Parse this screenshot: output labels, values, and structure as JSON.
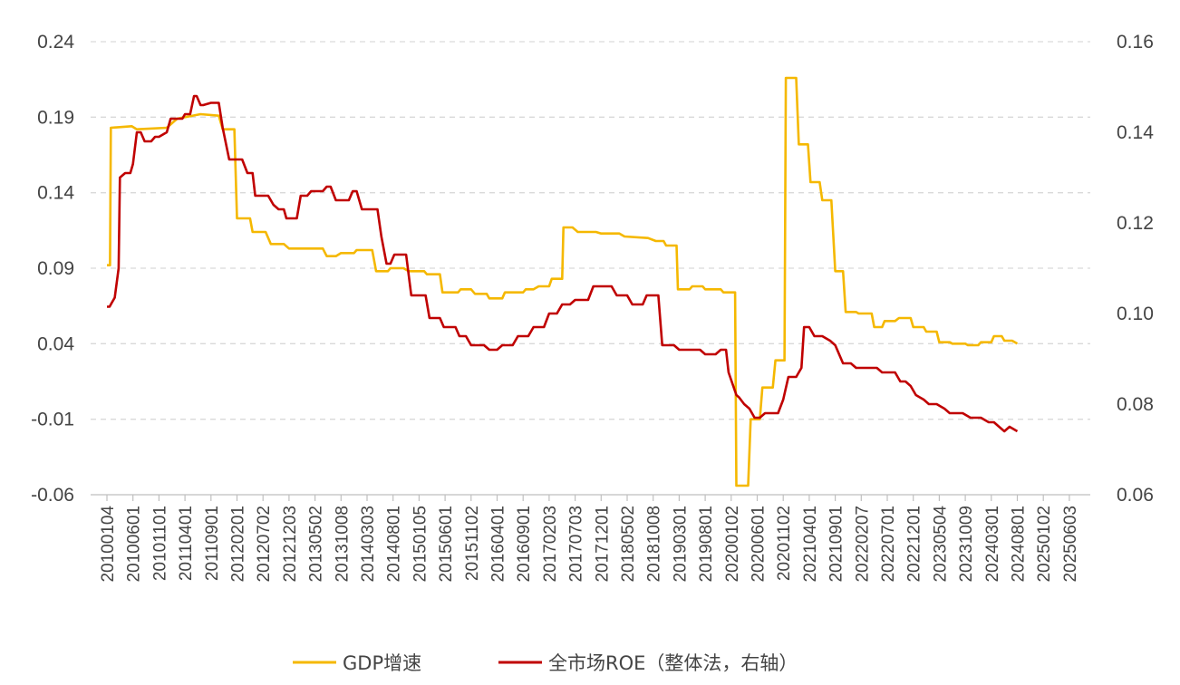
{
  "chart_data": {
    "type": "line",
    "grid": true,
    "legend_position": "bottom-center",
    "y_left": {
      "ticks": [
        "0.24",
        "0.19",
        "0.14",
        "0.09",
        "0.04",
        "-0.01",
        "-0.06"
      ],
      "range": [
        -0.06,
        0.24
      ]
    },
    "y_right": {
      "ticks": [
        "0.16",
        "0.14",
        "0.12",
        "0.10",
        "0.08",
        "0.06"
      ],
      "range": [
        0.06,
        0.16
      ]
    },
    "x_ticks": [
      "20100104",
      "20100601",
      "20101101",
      "20110401",
      "20110901",
      "20120201",
      "20120702",
      "20121203",
      "20130502",
      "20131008",
      "20140303",
      "20140801",
      "20150105",
      "20150601",
      "20151102",
      "20160401",
      "20160901",
      "20170203",
      "20170703",
      "20171201",
      "20180502",
      "20181008",
      "20190301",
      "20190801",
      "20200102",
      "20200601",
      "20201102",
      "20210401",
      "20210901",
      "20220207",
      "20220701",
      "20221201",
      "20230504",
      "20231009",
      "20240301",
      "20240801",
      "20250102",
      "20250603"
    ],
    "series": [
      {
        "name": "GDP增速",
        "axis": "left",
        "color": "#F5B800",
        "points": [
          [
            0,
            0.092
          ],
          [
            0.12,
            0.092
          ],
          [
            0.15,
            0.183
          ],
          [
            0.95,
            0.184
          ],
          [
            1.15,
            0.182
          ],
          [
            2.3,
            0.183
          ],
          [
            2.7,
            0.189
          ],
          [
            3.6,
            0.192
          ],
          [
            4.3,
            0.191
          ],
          [
            4.45,
            0.182
          ],
          [
            4.9,
            0.182
          ],
          [
            5.0,
            0.123
          ],
          [
            5.5,
            0.123
          ],
          [
            5.6,
            0.114
          ],
          [
            6.1,
            0.114
          ],
          [
            6.3,
            0.106
          ],
          [
            6.8,
            0.106
          ],
          [
            7.0,
            0.103
          ],
          [
            8.3,
            0.103
          ],
          [
            8.45,
            0.098
          ],
          [
            8.8,
            0.098
          ],
          [
            9.0,
            0.1
          ],
          [
            9.5,
            0.1
          ],
          [
            9.6,
            0.102
          ],
          [
            10.2,
            0.102
          ],
          [
            10.35,
            0.088
          ],
          [
            10.8,
            0.088
          ],
          [
            10.9,
            0.09
          ],
          [
            11.4,
            0.09
          ],
          [
            11.6,
            0.088
          ],
          [
            12.2,
            0.088
          ],
          [
            12.3,
            0.086
          ],
          [
            12.8,
            0.086
          ],
          [
            12.9,
            0.074
          ],
          [
            13.5,
            0.074
          ],
          [
            13.6,
            0.076
          ],
          [
            14.0,
            0.076
          ],
          [
            14.15,
            0.073
          ],
          [
            14.6,
            0.073
          ],
          [
            14.7,
            0.07
          ],
          [
            15.2,
            0.07
          ],
          [
            15.3,
            0.074
          ],
          [
            16.0,
            0.074
          ],
          [
            16.1,
            0.076
          ],
          [
            16.4,
            0.076
          ],
          [
            16.6,
            0.078
          ],
          [
            17.0,
            0.078
          ],
          [
            17.1,
            0.083
          ],
          [
            17.5,
            0.083
          ],
          [
            17.55,
            0.117
          ],
          [
            17.9,
            0.117
          ],
          [
            18.1,
            0.114
          ],
          [
            18.8,
            0.114
          ],
          [
            19.0,
            0.113
          ],
          [
            19.7,
            0.113
          ],
          [
            19.9,
            0.111
          ],
          [
            20.8,
            0.11
          ],
          [
            21.1,
            0.108
          ],
          [
            21.4,
            0.108
          ],
          [
            21.5,
            0.105
          ],
          [
            21.9,
            0.105
          ],
          [
            21.95,
            0.076
          ],
          [
            22.4,
            0.076
          ],
          [
            22.5,
            0.078
          ],
          [
            22.9,
            0.078
          ],
          [
            23.0,
            0.076
          ],
          [
            23.6,
            0.076
          ],
          [
            23.7,
            0.074
          ],
          [
            24.15,
            0.074
          ],
          [
            24.2,
            -0.054
          ],
          [
            24.65,
            -0.054
          ],
          [
            24.75,
            -0.01
          ],
          [
            25.1,
            -0.01
          ],
          [
            25.2,
            0.011
          ],
          [
            25.6,
            0.011
          ],
          [
            25.7,
            0.029
          ],
          [
            26.05,
            0.029
          ],
          [
            26.1,
            0.216
          ],
          [
            26.5,
            0.216
          ],
          [
            26.6,
            0.172
          ],
          [
            26.95,
            0.172
          ],
          [
            27.05,
            0.147
          ],
          [
            27.4,
            0.147
          ],
          [
            27.5,
            0.135
          ],
          [
            27.85,
            0.135
          ],
          [
            28.0,
            0.088
          ],
          [
            28.3,
            0.088
          ],
          [
            28.4,
            0.061
          ],
          [
            28.8,
            0.061
          ],
          [
            28.9,
            0.06
          ],
          [
            29.4,
            0.06
          ],
          [
            29.5,
            0.051
          ],
          [
            29.8,
            0.051
          ],
          [
            29.9,
            0.055
          ],
          [
            30.3,
            0.055
          ],
          [
            30.45,
            0.057
          ],
          [
            30.9,
            0.057
          ],
          [
            31.0,
            0.051
          ],
          [
            31.4,
            0.051
          ],
          [
            31.5,
            0.048
          ],
          [
            31.9,
            0.048
          ],
          [
            32.0,
            0.041
          ],
          [
            32.4,
            0.041
          ],
          [
            32.5,
            0.04
          ],
          [
            33.0,
            0.04
          ],
          [
            33.1,
            0.039
          ],
          [
            33.5,
            0.039
          ],
          [
            33.6,
            0.041
          ],
          [
            34.0,
            0.041
          ],
          [
            34.1,
            0.045
          ],
          [
            34.4,
            0.045
          ],
          [
            34.5,
            0.042
          ],
          [
            34.8,
            0.042
          ],
          [
            35.0,
            0.04
          ]
        ]
      },
      {
        "name": "全市场ROE（整体法，右轴）",
        "axis": "right",
        "color": "#C00000",
        "points": [
          [
            0,
            0.1015
          ],
          [
            0.1,
            0.1015
          ],
          [
            0.2,
            0.1025
          ],
          [
            0.3,
            0.1035
          ],
          [
            0.45,
            0.11
          ],
          [
            0.5,
            0.13
          ],
          [
            0.7,
            0.131
          ],
          [
            0.9,
            0.131
          ],
          [
            1.0,
            0.133
          ],
          [
            1.15,
            0.14
          ],
          [
            1.3,
            0.14
          ],
          [
            1.45,
            0.138
          ],
          [
            1.7,
            0.138
          ],
          [
            1.85,
            0.139
          ],
          [
            2.0,
            0.139
          ],
          [
            2.3,
            0.14
          ],
          [
            2.45,
            0.143
          ],
          [
            2.6,
            0.143
          ],
          [
            2.9,
            0.143
          ],
          [
            3.0,
            0.144
          ],
          [
            3.2,
            0.144
          ],
          [
            3.35,
            0.148
          ],
          [
            3.45,
            0.148
          ],
          [
            3.6,
            0.146
          ],
          [
            3.7,
            0.146
          ],
          [
            4.0,
            0.1465
          ],
          [
            4.3,
            0.1465
          ],
          [
            4.45,
            0.141
          ],
          [
            4.7,
            0.134
          ],
          [
            5.2,
            0.134
          ],
          [
            5.4,
            0.131
          ],
          [
            5.6,
            0.131
          ],
          [
            5.7,
            0.126
          ],
          [
            6.2,
            0.126
          ],
          [
            6.4,
            0.124
          ],
          [
            6.6,
            0.123
          ],
          [
            6.8,
            0.123
          ],
          [
            6.9,
            0.121
          ],
          [
            7.2,
            0.121
          ],
          [
            7.3,
            0.121
          ],
          [
            7.45,
            0.126
          ],
          [
            7.7,
            0.126
          ],
          [
            7.85,
            0.127
          ],
          [
            8.3,
            0.127
          ],
          [
            8.45,
            0.128
          ],
          [
            8.6,
            0.128
          ],
          [
            8.8,
            0.125
          ],
          [
            9.1,
            0.125
          ],
          [
            9.3,
            0.125
          ],
          [
            9.45,
            0.127
          ],
          [
            9.6,
            0.127
          ],
          [
            9.8,
            0.123
          ],
          [
            10.4,
            0.123
          ],
          [
            10.55,
            0.117
          ],
          [
            10.75,
            0.111
          ],
          [
            10.9,
            0.111
          ],
          [
            11.05,
            0.113
          ],
          [
            11.5,
            0.113
          ],
          [
            11.7,
            0.104
          ],
          [
            12.1,
            0.104
          ],
          [
            12.25,
            0.104
          ],
          [
            12.4,
            0.099
          ],
          [
            12.8,
            0.099
          ],
          [
            12.95,
            0.097
          ],
          [
            13.4,
            0.097
          ],
          [
            13.55,
            0.095
          ],
          [
            13.8,
            0.095
          ],
          [
            14.0,
            0.093
          ],
          [
            14.5,
            0.093
          ],
          [
            14.7,
            0.092
          ],
          [
            15.0,
            0.092
          ],
          [
            15.2,
            0.093
          ],
          [
            15.6,
            0.093
          ],
          [
            15.8,
            0.095
          ],
          [
            16.2,
            0.095
          ],
          [
            16.4,
            0.097
          ],
          [
            16.8,
            0.097
          ],
          [
            17.0,
            0.1
          ],
          [
            17.3,
            0.1
          ],
          [
            17.5,
            0.102
          ],
          [
            17.8,
            0.102
          ],
          [
            18.0,
            0.103
          ],
          [
            18.5,
            0.103
          ],
          [
            18.7,
            0.106
          ],
          [
            19.1,
            0.106
          ],
          [
            19.2,
            0.106
          ],
          [
            19.4,
            0.106
          ],
          [
            19.6,
            0.104
          ],
          [
            20.0,
            0.104
          ],
          [
            20.2,
            0.102
          ],
          [
            20.6,
            0.102
          ],
          [
            20.75,
            0.104
          ],
          [
            21.2,
            0.104
          ],
          [
            21.35,
            0.093
          ],
          [
            21.8,
            0.093
          ],
          [
            22.0,
            0.092
          ],
          [
            22.4,
            0.092
          ],
          [
            22.6,
            0.092
          ],
          [
            22.8,
            0.092
          ],
          [
            23.0,
            0.091
          ],
          [
            23.4,
            0.091
          ],
          [
            23.6,
            0.092
          ],
          [
            23.8,
            0.092
          ],
          [
            23.9,
            0.087
          ],
          [
            24.2,
            0.082
          ],
          [
            24.3,
            0.0815
          ],
          [
            24.5,
            0.08
          ],
          [
            24.7,
            0.079
          ],
          [
            24.9,
            0.077
          ],
          [
            25.1,
            0.077
          ],
          [
            25.3,
            0.078
          ],
          [
            25.8,
            0.078
          ],
          [
            26.0,
            0.081
          ],
          [
            26.2,
            0.086
          ],
          [
            26.5,
            0.086
          ],
          [
            26.7,
            0.088
          ],
          [
            26.8,
            0.097
          ],
          [
            27.0,
            0.097
          ],
          [
            27.2,
            0.095
          ],
          [
            27.5,
            0.095
          ],
          [
            27.8,
            0.094
          ],
          [
            28.0,
            0.093
          ],
          [
            28.3,
            0.089
          ],
          [
            28.6,
            0.089
          ],
          [
            28.8,
            0.088
          ],
          [
            29.1,
            0.088
          ],
          [
            29.4,
            0.088
          ],
          [
            29.6,
            0.088
          ],
          [
            29.8,
            0.087
          ],
          [
            30.0,
            0.087
          ],
          [
            30.3,
            0.087
          ],
          [
            30.5,
            0.085
          ],
          [
            30.7,
            0.085
          ],
          [
            30.9,
            0.084
          ],
          [
            31.1,
            0.082
          ],
          [
            31.4,
            0.081
          ],
          [
            31.6,
            0.08
          ],
          [
            31.9,
            0.08
          ],
          [
            32.2,
            0.079
          ],
          [
            32.4,
            0.078
          ],
          [
            32.6,
            0.078
          ],
          [
            32.9,
            0.078
          ],
          [
            33.2,
            0.077
          ],
          [
            33.6,
            0.077
          ],
          [
            33.9,
            0.076
          ],
          [
            34.1,
            0.076
          ],
          [
            34.3,
            0.075
          ],
          [
            34.5,
            0.074
          ],
          [
            34.7,
            0.075
          ],
          [
            35.0,
            0.074
          ]
        ]
      }
    ]
  }
}
